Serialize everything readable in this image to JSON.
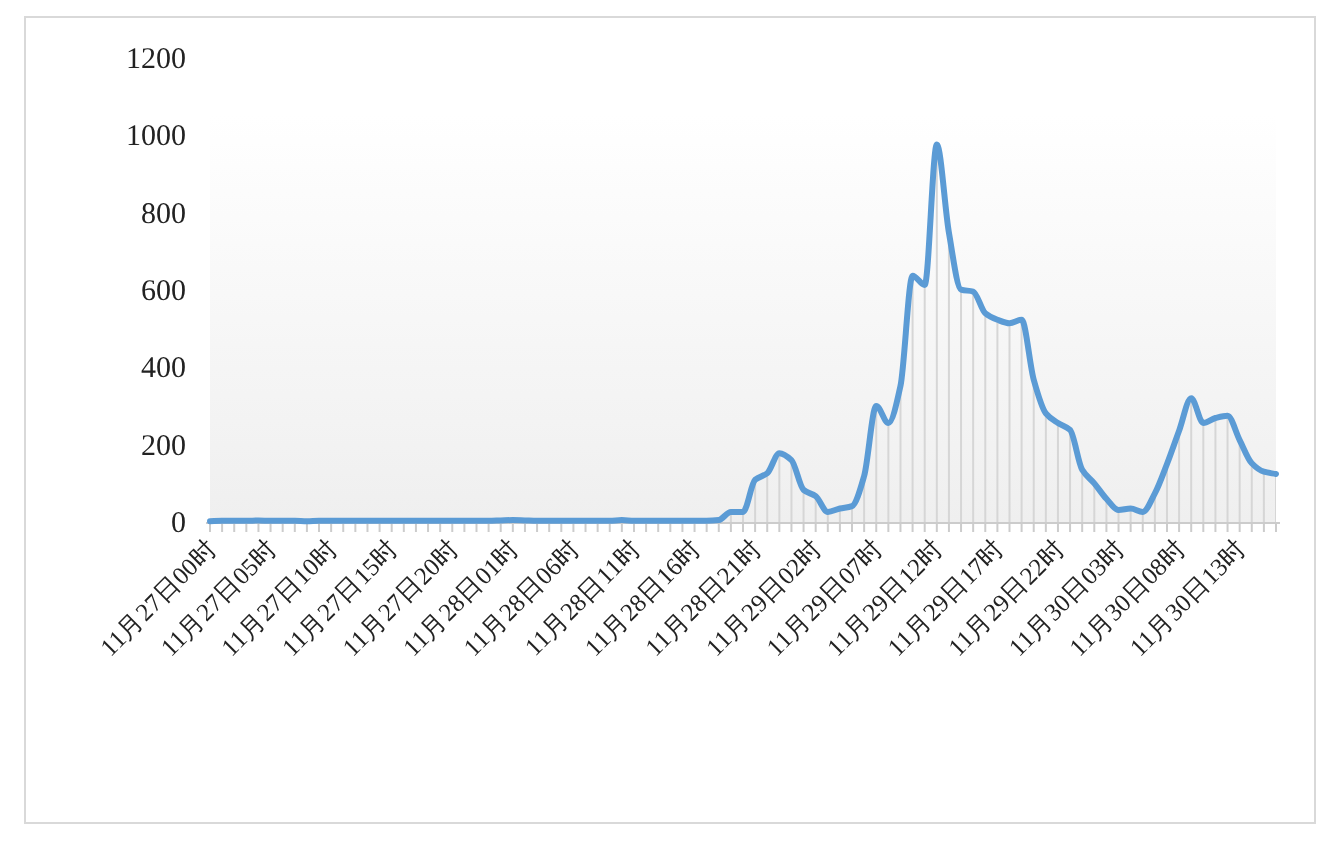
{
  "chart_data": {
    "type": "line",
    "categories": [
      "11月27日00时",
      null,
      null,
      null,
      null,
      "11月27日05时",
      null,
      null,
      null,
      null,
      "11月27日10时",
      null,
      null,
      null,
      null,
      "11月27日15时",
      null,
      null,
      null,
      null,
      "11月27日20时",
      null,
      null,
      null,
      null,
      "11月28日01时",
      null,
      null,
      null,
      null,
      "11月28日06时",
      null,
      null,
      null,
      null,
      "11月28日11时",
      null,
      null,
      null,
      null,
      "11月28日16时",
      null,
      null,
      null,
      null,
      "11月28日21时",
      null,
      null,
      null,
      null,
      "11月29日02时",
      null,
      null,
      null,
      null,
      "11月29日07时",
      null,
      null,
      null,
      null,
      "11月29日12时",
      null,
      null,
      null,
      null,
      "11月29日17时",
      null,
      null,
      null,
      null,
      "11月29日22时",
      null,
      null,
      null,
      null,
      "11月30日03时",
      null,
      null,
      null,
      null,
      "11月30日08时",
      null,
      null,
      null,
      null,
      "11月30日13时",
      null,
      null,
      null
    ],
    "values": [
      2,
      3,
      3,
      3,
      4,
      3,
      3,
      3,
      2,
      3,
      3,
      3,
      3,
      3,
      3,
      3,
      3,
      3,
      3,
      3,
      3,
      3,
      3,
      3,
      4,
      5,
      4,
      3,
      3,
      3,
      3,
      3,
      3,
      3,
      5,
      3,
      3,
      3,
      3,
      3,
      3,
      3,
      5,
      26,
      26,
      109,
      126,
      178,
      160,
      83,
      67,
      26,
      35,
      41,
      119,
      300,
      256,
      352,
      637,
      613,
      976,
      748,
      601,
      596,
      540,
      523,
      514,
      523,
      368,
      281,
      256,
      238,
      135,
      100,
      60,
      31,
      35,
      26,
      74,
      150,
      236,
      320,
      256,
      269,
      275,
      212,
      152,
      130,
      124
    ],
    "color": "#5b9bd5",
    "grid": "x",
    "ylim": [
      0,
      1200
    ],
    "yticks": [
      0,
      200,
      400,
      600,
      800,
      1000,
      1200
    ]
  }
}
